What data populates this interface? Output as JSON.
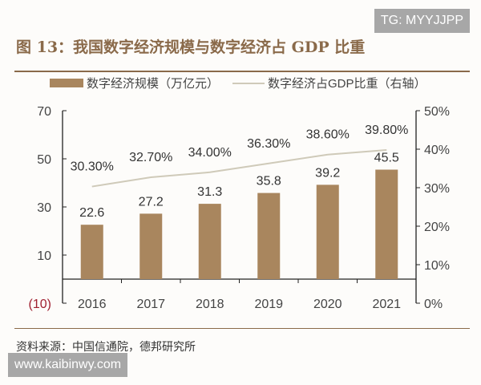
{
  "watermarks": {
    "top": "TG: MYYJJPP",
    "bottom": "www.kaibinwy.com"
  },
  "title": "图 13：我国数字经济规模与数字经济占 GDP 比重",
  "source": "资料来源：中国信通院，德邦研究所",
  "colors": {
    "bar": "#a9865e",
    "line": "#cfcab9",
    "title": "#8a6a4a",
    "negative_tick": "#a02030"
  },
  "chart_data": {
    "type": "bar+line",
    "categories": [
      "2016",
      "2017",
      "2018",
      "2019",
      "2020",
      "2021"
    ],
    "series": [
      {
        "name": "数字经济规模（万亿元）",
        "type": "bar",
        "axis": "left",
        "values": [
          22.6,
          27.2,
          31.3,
          35.8,
          39.2,
          45.5
        ],
        "labels": [
          "22.6",
          "27.2",
          "31.3",
          "35.8",
          "39.2",
          "45.5"
        ]
      },
      {
        "name": "数字经济占GDP比重（右轴）",
        "type": "line",
        "axis": "right",
        "values": [
          30.3,
          32.7,
          34.0,
          36.3,
          38.6,
          39.8
        ],
        "labels": [
          "30.30%",
          "32.70%",
          "34.00%",
          "36.30%",
          "38.60%",
          "39.80%"
        ]
      }
    ],
    "left_axis": {
      "ylim": [
        -10,
        70
      ],
      "ticks": [
        "70",
        "50",
        "30",
        "10",
        "(10)"
      ],
      "tick_values": [
        70,
        50,
        30,
        10,
        -10
      ]
    },
    "right_axis": {
      "ylim": [
        0,
        50
      ],
      "ticks": [
        "50%",
        "40%",
        "30%",
        "20%",
        "10%",
        "0%"
      ],
      "tick_values": [
        50,
        40,
        30,
        20,
        10,
        0
      ]
    },
    "legend_placement": "top",
    "grid": false
  }
}
